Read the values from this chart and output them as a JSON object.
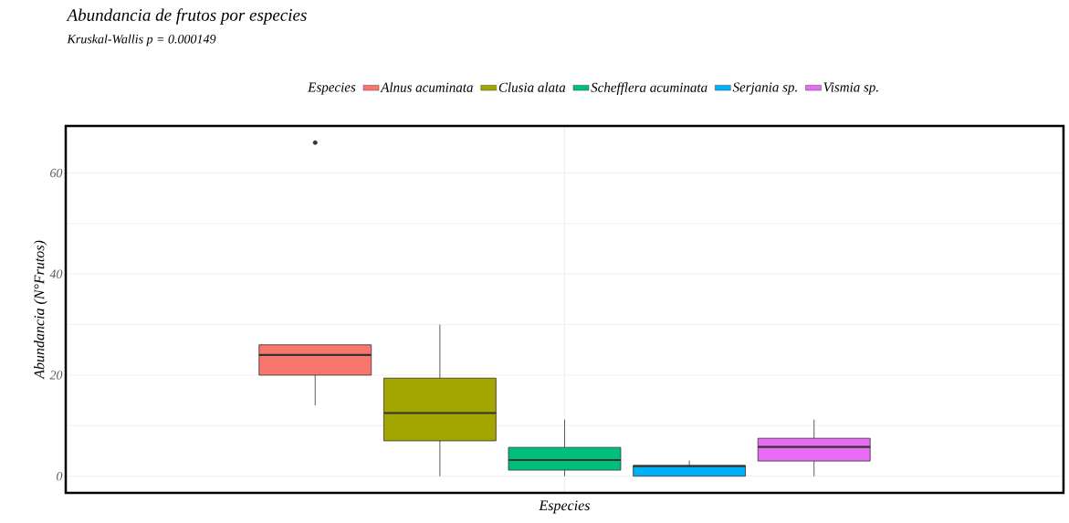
{
  "chart_data": {
    "type": "box",
    "title": "Abundancia de frutos por especies",
    "subtitle": "Kruskal-Wallis p = 0.000149",
    "xlabel": "Especies",
    "ylabel": "Abundancia (N°Frutos)",
    "legend_title": "Especies",
    "categories": [
      null
    ],
    "ylim": [
      -3.3,
      69.3
    ],
    "yticks": [
      0,
      20,
      40,
      60
    ],
    "grid": true,
    "legend": "top",
    "series": [
      {
        "name": "Alnus acuminata",
        "color": "#f8766d",
        "boxes": [
          {
            "low": 14,
            "q1": 20,
            "median": 24,
            "q3": 26,
            "high": 26,
            "outliers": [
              66
            ]
          }
        ]
      },
      {
        "name": "Clusia alata",
        "color": "#a3a500",
        "boxes": [
          {
            "low": 0,
            "q1": 7,
            "median": 12.5,
            "q3": 19.4,
            "high": 30
          }
        ]
      },
      {
        "name": "Schefflera acuminata",
        "color": "#00bf7d",
        "boxes": [
          {
            "low": 0,
            "q1": 1.2,
            "median": 3.2,
            "q3": 5.7,
            "high": 11.2
          }
        ]
      },
      {
        "name": "Serjania sp.",
        "color": "#00b0f6",
        "boxes": [
          {
            "low": 0,
            "q1": 0,
            "median": 2,
            "q3": 2.1,
            "high": 3.1
          }
        ]
      },
      {
        "name": "Vismia sp.",
        "color": "#e76bf3",
        "boxes": [
          {
            "low": 0,
            "q1": 3,
            "median": 5.8,
            "q3": 7.5,
            "high": 11.2
          }
        ]
      }
    ]
  }
}
